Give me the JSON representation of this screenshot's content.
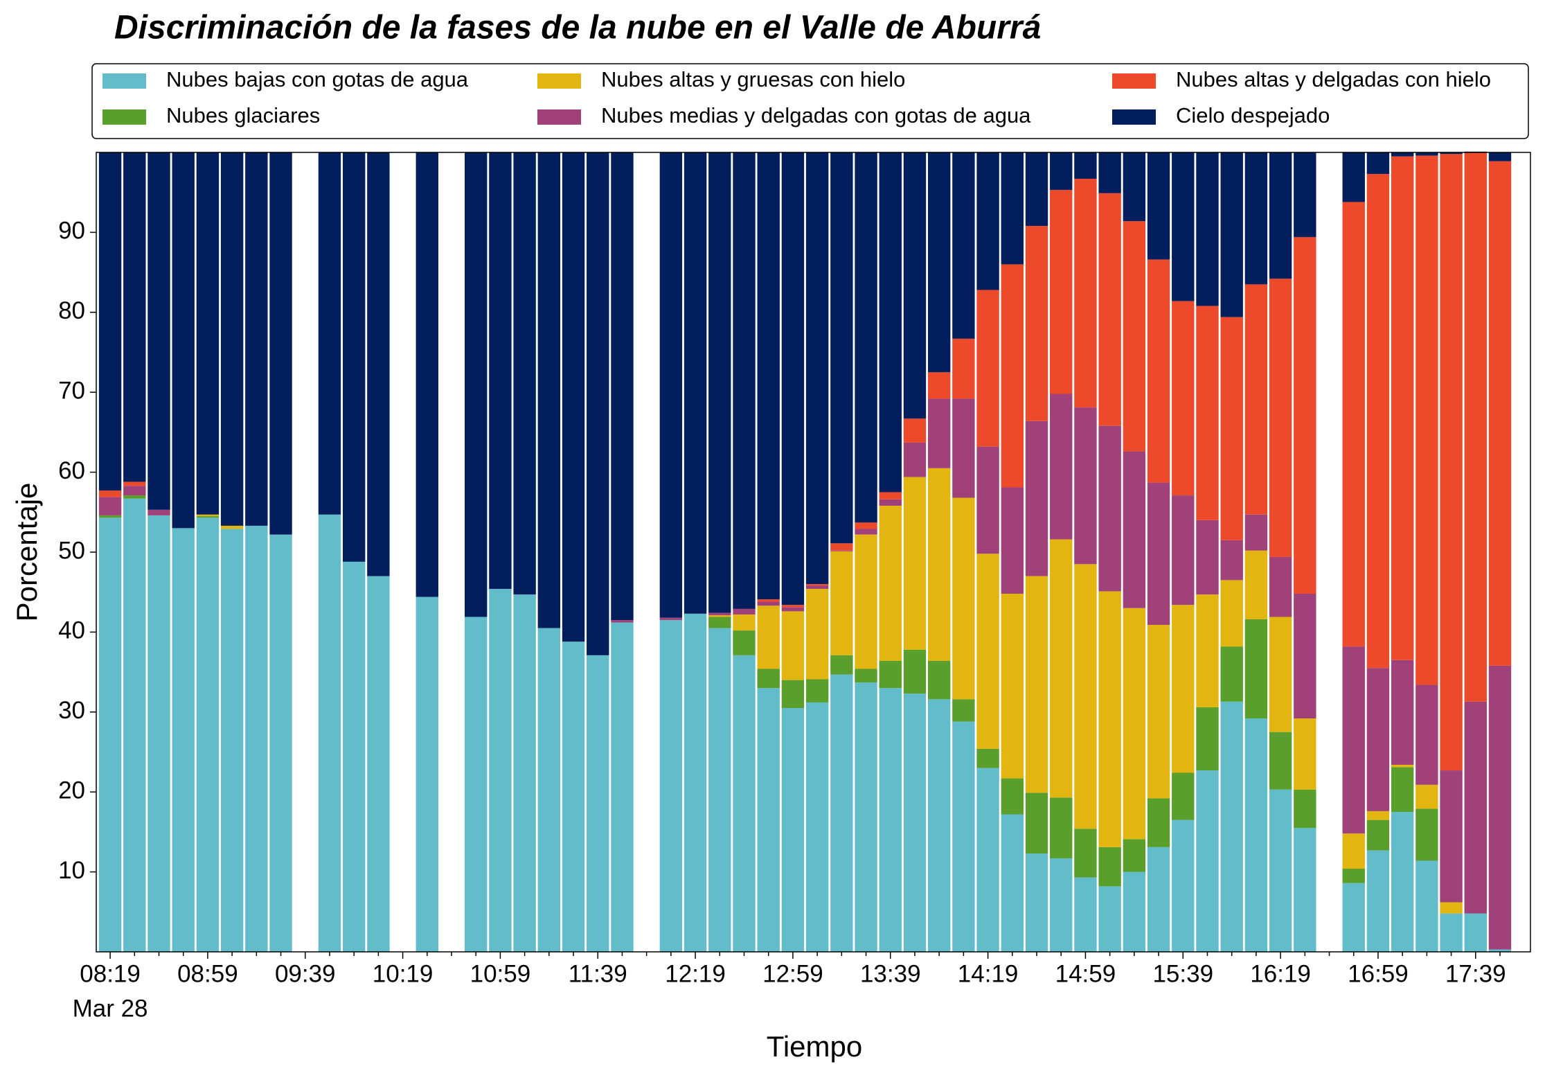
{
  "chart_data": {
    "type": "stacked_bar",
    "title": "Discriminación de la fases de la nube en el Valle de Aburrá",
    "xlabel": "Tiempo",
    "ylabel": "Porcentaje",
    "date_label": "Mar 28",
    "legend": "top",
    "categories": [
      "08:19",
      null,
      null,
      null,
      "08:59",
      null,
      null,
      null,
      "09:39",
      null,
      null,
      null,
      "10:19",
      null,
      null,
      null,
      "10:59",
      null,
      null,
      null,
      "11:39",
      null,
      null,
      null,
      "12:19",
      null,
      null,
      null,
      "12:59",
      null,
      null,
      null,
      "13:39",
      null,
      null,
      null,
      "14:19",
      null,
      null,
      null,
      "14:59",
      null,
      null,
      null,
      "15:39",
      null,
      null,
      null,
      "16:19",
      null,
      null,
      null,
      "16:59",
      null,
      null,
      null,
      "17:39",
      null
    ],
    "ylim": [
      0,
      100
    ],
    "yticks": [
      10,
      20,
      30,
      40,
      50,
      60,
      70,
      80,
      90
    ],
    "series": [
      {
        "name": "Nubes bajas con gotas de agua",
        "color": "#63bcc9",
        "values": [
          54.3,
          56.7,
          54.6,
          53.0,
          54.3,
          52.9,
          53.3,
          52.2,
          null,
          54.7,
          48.8,
          47.0,
          null,
          44.4,
          null,
          41.9,
          45.4,
          44.7,
          40.5,
          38.8,
          37.1,
          41.2,
          null,
          41.5,
          42.3,
          40.5,
          37.1,
          33.0,
          30.5,
          31.2,
          34.7,
          33.7,
          33.0,
          32.3,
          31.6,
          28.8,
          23.0,
          17.2,
          12.3,
          11.7,
          9.3,
          8.2,
          10.0,
          13.1,
          16.5,
          22.7,
          31.3,
          29.2,
          20.3,
          15.5,
          null,
          8.6,
          12.7,
          17.5,
          11.4,
          4.8,
          4.8,
          0.3
        ]
      },
      {
        "name": "Nubes glaciares",
        "color": "#5a9e2c",
        "values": [
          0.3,
          0.4,
          0,
          0,
          0.2,
          0,
          0,
          0,
          null,
          0,
          0,
          0,
          null,
          0,
          null,
          0,
          0,
          0,
          0,
          0,
          0,
          0,
          null,
          0,
          0,
          1.4,
          3.1,
          2.4,
          3.5,
          2.9,
          2.4,
          1.7,
          3.4,
          5.5,
          4.8,
          2.8,
          2.4,
          4.5,
          7.6,
          7.6,
          6.1,
          4.9,
          4.1,
          6.1,
          5.9,
          7.9,
          6.9,
          12.4,
          7.2,
          4.8,
          null,
          1.8,
          3.8,
          5.6,
          6.5,
          0,
          0,
          0
        ]
      },
      {
        "name": "Nubes altas y gruesas con hielo",
        "color": "#e3b511",
        "values": [
          0,
          0,
          0,
          0,
          0.2,
          0.4,
          0,
          0,
          null,
          0,
          0,
          0,
          null,
          0,
          null,
          0,
          0,
          0,
          0,
          0,
          0,
          0,
          null,
          0,
          0,
          0.2,
          2.0,
          7.9,
          8.6,
          11.3,
          13.0,
          16.8,
          19.4,
          21.6,
          24.1,
          25.2,
          24.4,
          23.1,
          27.1,
          32.3,
          33.1,
          32.0,
          28.9,
          21.7,
          21.0,
          14.1,
          8.3,
          8.6,
          14.4,
          8.9,
          null,
          4.4,
          1.1,
          0.3,
          3.0,
          1.4,
          0,
          0
        ]
      },
      {
        "name": "Nubes medias y delgadas con gotas de agua",
        "color": "#a0417a",
        "values": [
          2.3,
          1.2,
          0.7,
          0,
          0,
          0,
          0,
          0,
          null,
          0,
          0,
          0,
          null,
          0,
          null,
          0,
          0,
          0,
          0,
          0,
          0,
          0.3,
          null,
          0.3,
          0,
          0.3,
          0.7,
          0.5,
          0.5,
          0.4,
          0.1,
          0.7,
          0.8,
          4.3,
          8.7,
          12.4,
          13.4,
          13.3,
          19.4,
          18.2,
          19.6,
          20.7,
          19.6,
          17.8,
          13.7,
          9.3,
          5.0,
          4.5,
          7.5,
          15.6,
          null,
          23.4,
          17.9,
          13.1,
          12.5,
          16.5,
          26.5,
          35.5
        ]
      },
      {
        "name": "Nubes altas y delgadas con hielo",
        "color": "#ec4a2a",
        "values": [
          0.8,
          0.5,
          0,
          0,
          0,
          0,
          0,
          0,
          null,
          0,
          0,
          0,
          null,
          0,
          null,
          0,
          0,
          0,
          0,
          0,
          0,
          0,
          null,
          0,
          0,
          0,
          0,
          0.3,
          0.3,
          0.2,
          0.9,
          0.8,
          0.9,
          3.0,
          3.3,
          7.5,
          19.6,
          27.9,
          24.4,
          25.5,
          28.6,
          29.1,
          28.8,
          27.9,
          24.3,
          26.8,
          27.9,
          28.8,
          34.8,
          44.6,
          null,
          55.6,
          61.8,
          63.0,
          66.2,
          77.1,
          68.7,
          63.1
        ]
      },
      {
        "name": "Cielo despejado",
        "color": "#031e5c",
        "values": [
          42.3,
          41.2,
          44.7,
          47.0,
          45.3,
          46.7,
          46.7,
          47.8,
          null,
          45.3,
          51.2,
          53.0,
          null,
          55.6,
          null,
          58.1,
          54.6,
          55.3,
          59.5,
          61.2,
          62.9,
          58.5,
          null,
          58.2,
          57.7,
          57.6,
          57.1,
          55.9,
          56.6,
          54.0,
          48.9,
          46.3,
          42.5,
          33.3,
          27.5,
          23.3,
          17.2,
          14.0,
          9.2,
          4.7,
          3.3,
          5.1,
          8.6,
          13.4,
          18.6,
          19.2,
          20.6,
          16.5,
          15.8,
          10.6,
          null,
          6.2,
          2.7,
          0.5,
          0.4,
          0.2,
          0.1,
          1.1
        ]
      }
    ]
  }
}
